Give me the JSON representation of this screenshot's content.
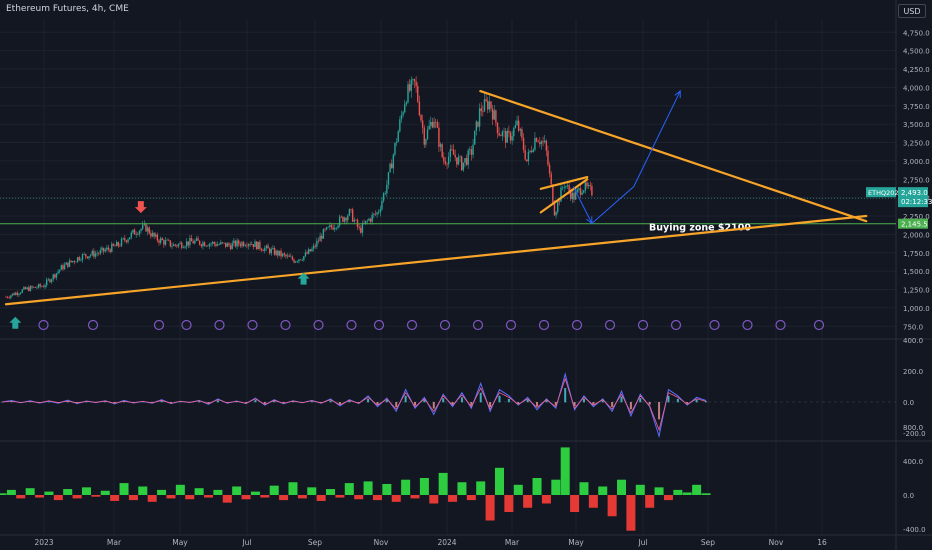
{
  "header": {
    "title": "Ethereum Futures, 4h, CME",
    "currency": "USD"
  },
  "colors": {
    "bg": "#131722",
    "grid": "#1e222d",
    "text": "#b2b5be",
    "up": "#26a69a",
    "down": "#ef5350",
    "trend": "#f7a428",
    "zone": "#4caf50",
    "arrow": "#2962ff",
    "event": "#7e57c2"
  },
  "chart_data": [
    {
      "type": "candlestick",
      "title": "Ethereum Futures, 4h, CME",
      "x_ticks": [
        "2023",
        "Mar",
        "May",
        "Jul",
        "Sep",
        "Nov",
        "2024",
        "Mar",
        "May",
        "Jul",
        "Sep",
        "Nov",
        "16"
      ],
      "y_ticks": [
        750,
        1000,
        1250,
        1500,
        1750,
        2000,
        2250,
        2500,
        2750,
        3000,
        3250,
        3500,
        3750,
        4000,
        4250,
        4500,
        4750
      ],
      "y_tick_labels": [
        "750.0",
        "1,000.0",
        "1,250.0",
        "1,500.0",
        "1,750.0",
        "2,000.0",
        "2,250.0",
        "2,500.0",
        "2,750.0",
        "3,000.0",
        "3,250.0",
        "3,500.0",
        "3,750.0",
        "4,000.0",
        "4,250.0",
        "4,500.0",
        "4,750.0"
      ],
      "ylim": [
        750,
        5000
      ],
      "price_path": [
        [
          0,
          1150
        ],
        [
          4,
          1250
        ],
        [
          8,
          1300
        ],
        [
          12,
          1550
        ],
        [
          16,
          1700
        ],
        [
          20,
          1750
        ],
        [
          24,
          1850
        ],
        [
          28,
          2050
        ],
        [
          30,
          2100
        ],
        [
          32,
          1950
        ],
        [
          36,
          1850
        ],
        [
          40,
          1900
        ],
        [
          44,
          1880
        ],
        [
          48,
          1850
        ],
        [
          52,
          1900
        ],
        [
          56,
          1800
        ],
        [
          60,
          1700
        ],
        [
          62,
          1650
        ],
        [
          64,
          1700
        ],
        [
          66,
          1800
        ],
        [
          68,
          2000
        ],
        [
          70,
          2100
        ],
        [
          72,
          2200
        ],
        [
          74,
          2300
        ],
        [
          76,
          2050
        ],
        [
          78,
          2200
        ],
        [
          80,
          2300
        ],
        [
          82,
          2700
        ],
        [
          84,
          3300
        ],
        [
          86,
          3900
        ],
        [
          88,
          4050
        ],
        [
          90,
          3300
        ],
        [
          92,
          3600
        ],
        [
          94,
          3000
        ],
        [
          96,
          3100
        ],
        [
          98,
          2950
        ],
        [
          100,
          3100
        ],
        [
          102,
          3700
        ],
        [
          104,
          3800
        ],
        [
          106,
          3400
        ],
        [
          108,
          3300
        ],
        [
          110,
          3500
        ],
        [
          112,
          3000
        ],
        [
          114,
          3350
        ],
        [
          116,
          3200
        ],
        [
          118,
          2300
        ],
        [
          120,
          2700
        ],
        [
          122,
          2500
        ],
        [
          124,
          2650
        ],
        [
          126,
          2580
        ]
      ],
      "trendlines": [
        {
          "name": "support",
          "from": [
            0,
            1050
          ],
          "to": [
            185,
            2250
          ]
        },
        {
          "name": "resistance",
          "from": [
            102,
            3950
          ],
          "to": [
            185,
            2180
          ]
        },
        {
          "name": "channel-top",
          "from": [
            115,
            2620
          ],
          "to": [
            125,
            2780
          ]
        },
        {
          "name": "channel-bottom",
          "from": [
            115,
            2300
          ],
          "to": [
            125,
            2750
          ]
        }
      ],
      "zone": {
        "price": 2145.5,
        "label": "Buying zone $2100"
      },
      "projection": [
        [
          122,
          2650
        ],
        [
          126,
          2150
        ],
        [
          135,
          2650
        ],
        [
          145,
          3950
        ]
      ],
      "markers": [
        {
          "name": "sell-arrow",
          "x": 29,
          "price": 2290,
          "direction": "down"
        },
        {
          "name": "buy-arrow",
          "x": 64,
          "price": 1480,
          "direction": "up"
        },
        {
          "name": "buy-arrow-start",
          "x": 2,
          "price": 880,
          "direction": "up"
        }
      ],
      "price_labels": [
        {
          "name": "symbol",
          "text": "ETHQ2024",
          "price": 2493
        },
        {
          "name": "last-price",
          "text": "2,493.0",
          "price": 2493
        },
        {
          "name": "countdown",
          "text": "02:12:33",
          "price": 2390
        },
        {
          "name": "zone-price",
          "text": "2,145.5",
          "price": 2145.5
        }
      ],
      "event_icon_x": [
        5,
        14,
        26,
        31,
        37,
        43,
        49,
        55,
        61,
        66,
        72,
        78,
        84,
        90,
        96,
        102,
        108,
        114,
        120,
        127,
        133,
        139,
        146
      ]
    },
    {
      "type": "line",
      "ylim": [
        -300,
        400
      ],
      "y_ticks": [
        400,
        200,
        0,
        -200
      ],
      "y_tick_labels": [
        "400.0",
        "200.0",
        "0.0",
        "-200.0"
      ],
      "series": [
        {
          "values": [
            0,
            10,
            -5,
            8,
            -6,
            5,
            -8,
            12,
            -10,
            6,
            -4,
            8,
            -12,
            10,
            -6,
            4,
            -8,
            15,
            -10,
            5,
            -3,
            10,
            -15,
            20,
            -8,
            6,
            -10,
            25,
            -20,
            15,
            -12,
            8,
            -5,
            10,
            -8,
            20,
            -25,
            15,
            -10,
            40,
            -30,
            25,
            -60,
            80,
            -40,
            30,
            -80,
            50,
            -30,
            60,
            -40,
            120,
            -60,
            80,
            40,
            -20,
            30,
            -50,
            20,
            -40,
            180,
            -50,
            40,
            -30,
            20,
            -60,
            70,
            -90,
            50,
            -30,
            -220,
            80,
            40,
            -20,
            30,
            10
          ]
        },
        {
          "values": [
            0,
            5,
            -3,
            4,
            -5,
            8,
            -4,
            6,
            -6,
            4,
            -2,
            6,
            -8,
            5,
            -4,
            3,
            -5,
            10,
            -8,
            4,
            -2,
            8,
            -10,
            15,
            -5,
            4,
            -8,
            20,
            -15,
            10,
            -8,
            6,
            -4,
            8,
            -6,
            15,
            -18,
            10,
            -8,
            30,
            -20,
            18,
            -45,
            60,
            -30,
            20,
            -60,
            40,
            -20,
            45,
            -30,
            90,
            -45,
            60,
            30,
            -15,
            20,
            -35,
            15,
            -30,
            150,
            -40,
            30,
            -20,
            15,
            -45,
            50,
            -70,
            40,
            -25,
            -180,
            60,
            30,
            -15,
            20,
            5
          ]
        }
      ]
    },
    {
      "type": "area",
      "ylim": [
        -500,
        900
      ],
      "y_ticks": [
        800,
        400,
        0,
        -400
      ],
      "y_tick_labels": [
        "800.0",
        "400.0",
        "0.0",
        "-400.0"
      ],
      "values": [
        20,
        60,
        -40,
        80,
        -30,
        40,
        -60,
        70,
        -40,
        90,
        -20,
        50,
        -70,
        140,
        -60,
        100,
        -80,
        60,
        -40,
        120,
        -50,
        80,
        -30,
        60,
        -90,
        100,
        -50,
        40,
        -30,
        110,
        -60,
        150,
        -40,
        90,
        -70,
        70,
        -30,
        140,
        -50,
        160,
        -60,
        130,
        -80,
        180,
        -40,
        200,
        -100,
        260,
        -80,
        150,
        -60,
        160,
        -300,
        320,
        -200,
        120,
        -150,
        200,
        -100,
        180,
        560,
        -200,
        150,
        -150,
        100,
        -250,
        180,
        -420,
        120,
        -150,
        90,
        -60,
        60,
        30,
        120,
        20
      ]
    }
  ],
  "x_labels": [
    "2023",
    "Mar",
    "May",
    "Jul",
    "Sep",
    "Nov",
    "2024",
    "Mar",
    "May",
    "Jul",
    "Sep",
    "Nov",
    "16"
  ]
}
